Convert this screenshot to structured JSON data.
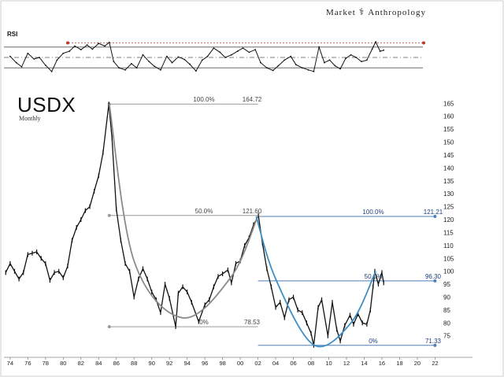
{
  "branding": {
    "left": "Market",
    "right": "Anthropology"
  },
  "chart_data": [
    {
      "type": "line",
      "title": "USDX",
      "subtitle": "Monthly",
      "frequency": "monthly",
      "x_unit": "year",
      "xlim": [
        1973.3,
        2022.5
      ],
      "ylim": [
        67,
        166
      ],
      "y_ticks": [
        75,
        80,
        85,
        90,
        95,
        100,
        105,
        110,
        115,
        120,
        125,
        130,
        135,
        140,
        145,
        150,
        155,
        160,
        165
      ],
      "x_ticks": [
        {
          "year": 1974,
          "label": "74"
        },
        {
          "year": 1976,
          "label": "76"
        },
        {
          "year": 1978,
          "label": "78"
        },
        {
          "year": 1980,
          "label": "80"
        },
        {
          "year": 1982,
          "label": "82"
        },
        {
          "year": 1984,
          "label": "84"
        },
        {
          "year": 1986,
          "label": "86"
        },
        {
          "year": 1988,
          "label": "88"
        },
        {
          "year": 1990,
          "label": "90"
        },
        {
          "year": 1992,
          "label": "92"
        },
        {
          "year": 1994,
          "label": "94"
        },
        {
          "year": 1996,
          "label": "96"
        },
        {
          "year": 1998,
          "label": "98"
        },
        {
          "year": 2000,
          "label": "00"
        },
        {
          "year": 2002,
          "label": "02"
        },
        {
          "year": 2004,
          "label": "04"
        },
        {
          "year": 2006,
          "label": "06"
        },
        {
          "year": 2008,
          "label": "08"
        },
        {
          "year": 2010,
          "label": "10"
        },
        {
          "year": 2012,
          "label": "12"
        },
        {
          "year": 2014,
          "label": "14"
        },
        {
          "year": 2016,
          "label": "16"
        },
        {
          "year": 2018,
          "label": "18"
        },
        {
          "year": 2020,
          "label": "20"
        },
        {
          "year": 2022,
          "label": "22"
        }
      ],
      "series": [
        {
          "color": "#111111",
          "points": [
            [
              1973.5,
              99.5
            ],
            [
              1974.0,
              103.0
            ],
            [
              1974.5,
              100.0
            ],
            [
              1975.0,
              97.0
            ],
            [
              1975.5,
              99.5
            ],
            [
              1976.0,
              106.5
            ],
            [
              1976.5,
              107.0
            ],
            [
              1977.0,
              107.5
            ],
            [
              1977.5,
              105.0
            ],
            [
              1978.0,
              103.0
            ],
            [
              1978.5,
              96.5
            ],
            [
              1979.0,
              99.5
            ],
            [
              1979.5,
              100.0
            ],
            [
              1980.0,
              97.5
            ],
            [
              1980.5,
              102.0
            ],
            [
              1981.0,
              112.0
            ],
            [
              1981.5,
              117.0
            ],
            [
              1982.0,
              120.0
            ],
            [
              1982.5,
              123.5
            ],
            [
              1983.0,
              125.0
            ],
            [
              1983.5,
              131.0
            ],
            [
              1984.0,
              137.0
            ],
            [
              1984.5,
              146.0
            ],
            [
              1985.15,
              164.72
            ],
            [
              1985.5,
              152.0
            ],
            [
              1986.0,
              124.0
            ],
            [
              1986.5,
              112.0
            ],
            [
              1987.0,
              103.0
            ],
            [
              1987.5,
              100.0
            ],
            [
              1988.0,
              90.0
            ],
            [
              1988.5,
              97.0
            ],
            [
              1989.0,
              101.0
            ],
            [
              1989.5,
              97.0
            ],
            [
              1990.0,
              92.0
            ],
            [
              1990.5,
              89.0
            ],
            [
              1991.0,
              84.0
            ],
            [
              1991.5,
              95.0
            ],
            [
              1992.0,
              89.5
            ],
            [
              1992.7,
              78.53
            ],
            [
              1993.0,
              91.5
            ],
            [
              1993.5,
              94.0
            ],
            [
              1994.0,
              92.0
            ],
            [
              1994.5,
              88.0
            ],
            [
              1995.3,
              80.5
            ],
            [
              1996.0,
              87.0
            ],
            [
              1996.5,
              89.0
            ],
            [
              1997.0,
              94.0
            ],
            [
              1997.5,
              98.0
            ],
            [
              1998.0,
              99.0
            ],
            [
              1998.6,
              100.5
            ],
            [
              1999.0,
              95.5
            ],
            [
              1999.5,
              103.0
            ],
            [
              2000.0,
              104.0
            ],
            [
              2000.5,
              110.0
            ],
            [
              2001.0,
              113.0
            ],
            [
              2001.5,
              118.0
            ],
            [
              2002.05,
              121.6
            ],
            [
              2002.5,
              111.0
            ],
            [
              2003.0,
              101.0
            ],
            [
              2003.5,
              94.0
            ],
            [
              2004.0,
              86.0
            ],
            [
              2004.5,
              88.0
            ],
            [
              2005.0,
              82.0
            ],
            [
              2005.5,
              89.0
            ],
            [
              2006.0,
              90.0
            ],
            [
              2006.5,
              85.0
            ],
            [
              2007.0,
              84.0
            ],
            [
              2007.5,
              80.0
            ],
            [
              2008.0,
              76.0
            ],
            [
              2008.3,
              71.33
            ],
            [
              2008.8,
              86.0
            ],
            [
              2009.2,
              89.0
            ],
            [
              2009.9,
              75.0
            ],
            [
              2010.4,
              88.0
            ],
            [
              2010.9,
              77.5
            ],
            [
              2011.3,
              73.0
            ],
            [
              2011.8,
              79.0
            ],
            [
              2012.4,
              83.0
            ],
            [
              2012.8,
              79.5
            ],
            [
              2013.3,
              83.5
            ],
            [
              2013.8,
              80.0
            ],
            [
              2014.3,
              79.5
            ],
            [
              2014.7,
              85.0
            ],
            [
              2015.0,
              94.0
            ],
            [
              2015.2,
              100.0
            ],
            [
              2015.6,
              95.0
            ],
            [
              2016.0,
              99.5
            ],
            [
              2016.2,
              95.5
            ]
          ]
        }
      ],
      "annotations": {
        "fib_levels": [
          {
            "pct_label": "100.0%",
            "value_label": "164.72",
            "value": 164.72,
            "x_from": 1985.2,
            "x_to": 2002.0,
            "color": "#9a9a9a"
          },
          {
            "pct_label": "50.0%",
            "value_label": "121.60",
            "value": 121.6,
            "x_from": 1985.2,
            "x_to": 2002.0,
            "color": "#9a9a9a"
          },
          {
            "pct_label": "0%",
            "value_label": "78.53",
            "value": 78.53,
            "x_from": 1985.2,
            "x_to": 2002.0,
            "color": "#9a9a9a"
          },
          {
            "pct_label": "100.0%",
            "value_label": "121.21",
            "value": 121.21,
            "x_from": 2002.0,
            "x_to": 2022.0,
            "color": "#4f7fb8"
          },
          {
            "pct_label": "50.0%",
            "value_label": "96.30",
            "value": 96.3,
            "x_from": 2002.0,
            "x_to": 2022.0,
            "color": "#4f7fb8"
          },
          {
            "pct_label": "0%",
            "value_label": "71.33",
            "value": 71.33,
            "x_from": 2002.0,
            "x_to": 2022.0,
            "color": "#4f7fb8"
          }
        ],
        "bowl_arcs": [
          {
            "color": "#8a8a8a",
            "points": [
              [
                1985.2,
                164.7
              ],
              [
                1988.0,
                104.0
              ],
              [
                1993.5,
                82.0
              ],
              [
                1999.0,
                98.0
              ],
              [
                2002.0,
                121.6
              ]
            ]
          },
          {
            "color": "#3d8fc6",
            "points": [
              [
                2001.8,
                121.2
              ],
              [
                2004.0,
                97.0
              ],
              [
                2008.3,
                71.5
              ],
              [
                2012.5,
                80.0
              ],
              [
                2015.3,
                100.0
              ]
            ]
          }
        ]
      }
    },
    {
      "type": "line",
      "title": "RSI",
      "ylim": [
        0,
        100
      ],
      "reference_lines": [
        70,
        50,
        30
      ],
      "top_marker_value": 78,
      "xlim": [
        1973.3,
        2022.5
      ],
      "series": [
        {
          "color": "#111111",
          "points": [
            [
              1974.0,
              52
            ],
            [
              1974.7,
              40
            ],
            [
              1975.3,
              32
            ],
            [
              1976.0,
              58
            ],
            [
              1976.7,
              47
            ],
            [
              1977.3,
              50
            ],
            [
              1978.0,
              35
            ],
            [
              1978.7,
              23
            ],
            [
              1979.3,
              45
            ],
            [
              1980.0,
              58
            ],
            [
              1980.7,
              62
            ],
            [
              1981.3,
              72
            ],
            [
              1982.0,
              65
            ],
            [
              1982.7,
              74
            ],
            [
              1983.3,
              66
            ],
            [
              1984.0,
              77
            ],
            [
              1984.7,
              72
            ],
            [
              1985.2,
              79
            ],
            [
              1985.7,
              42
            ],
            [
              1986.3,
              30
            ],
            [
              1987.0,
              26
            ],
            [
              1987.7,
              38
            ],
            [
              1988.3,
              30
            ],
            [
              1989.0,
              55
            ],
            [
              1989.7,
              42
            ],
            [
              1990.3,
              33
            ],
            [
              1991.0,
              26
            ],
            [
              1991.7,
              52
            ],
            [
              1992.3,
              40
            ],
            [
              1993.0,
              51
            ],
            [
              1993.7,
              46
            ],
            [
              1994.3,
              37
            ],
            [
              1995.0,
              24
            ],
            [
              1995.7,
              45
            ],
            [
              1996.3,
              52
            ],
            [
              1997.0,
              68
            ],
            [
              1997.7,
              60
            ],
            [
              1998.3,
              50
            ],
            [
              1999.0,
              55
            ],
            [
              1999.7,
              62
            ],
            [
              2000.3,
              68
            ],
            [
              2001.0,
              60
            ],
            [
              2001.7,
              65
            ],
            [
              2002.3,
              40
            ],
            [
              2003.0,
              30
            ],
            [
              2003.7,
              25
            ],
            [
              2004.3,
              34
            ],
            [
              2005.0,
              45
            ],
            [
              2005.7,
              52
            ],
            [
              2006.3,
              36
            ],
            [
              2007.0,
              30
            ],
            [
              2007.7,
              26
            ],
            [
              2008.3,
              23
            ],
            [
              2008.9,
              70
            ],
            [
              2009.5,
              40
            ],
            [
              2010.1,
              45
            ],
            [
              2010.7,
              34
            ],
            [
              2011.3,
              28
            ],
            [
              2011.9,
              48
            ],
            [
              2012.5,
              55
            ],
            [
              2013.1,
              50
            ],
            [
              2013.7,
              42
            ],
            [
              2014.3,
              45
            ],
            [
              2014.9,
              66
            ],
            [
              2015.3,
              80
            ],
            [
              2015.8,
              62
            ],
            [
              2016.2,
              64
            ]
          ]
        }
      ]
    }
  ]
}
